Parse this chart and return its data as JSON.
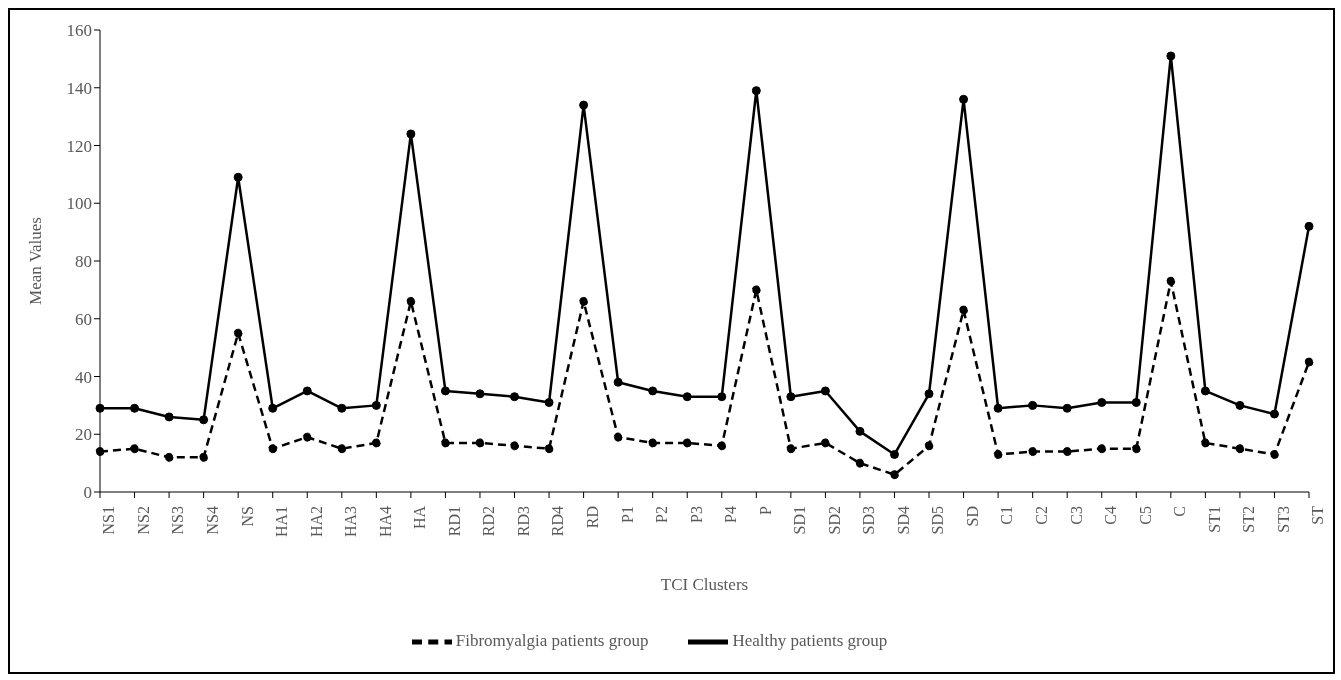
{
  "chart_data": {
    "type": "line",
    "xlabel": "TCI Clusters",
    "ylabel": "Mean Values",
    "categories": [
      "NS1",
      "NS2",
      "NS3",
      "NS4",
      "NS",
      "HA1",
      "HA2",
      "HA3",
      "HA4",
      "HA",
      "RD1",
      "RD2",
      "RD3",
      "RD4",
      "RD",
      "P1",
      "P2",
      "P3",
      "P4",
      "P",
      "SD1",
      "SD2",
      "SD3",
      "SD4",
      "SD5",
      "SD",
      "C1",
      "C2",
      "C3",
      "C4",
      "C5",
      "C",
      "ST1",
      "ST2",
      "ST3",
      "ST"
    ],
    "series": [
      {
        "name": "Fibromyalgia patients group",
        "color": "#000000",
        "line_style": "dashed",
        "values": [
          14,
          15,
          12,
          12,
          55,
          15,
          19,
          15,
          17,
          66,
          17,
          17,
          16,
          15,
          66,
          19,
          17,
          17,
          16,
          70,
          15,
          17,
          10,
          6,
          16,
          63,
          13,
          14,
          14,
          15,
          15,
          73,
          17,
          15,
          13,
          45
        ]
      },
      {
        "name": "Healthy patients group",
        "color": "#000000",
        "line_style": "solid",
        "values": [
          29,
          29,
          26,
          25,
          109,
          29,
          35,
          29,
          30,
          124,
          35,
          34,
          33,
          31,
          134,
          38,
          35,
          33,
          33,
          139,
          33,
          35,
          21,
          13,
          34,
          136,
          29,
          30,
          29,
          31,
          31,
          151,
          35,
          30,
          27,
          92
        ]
      }
    ],
    "ylim": [
      0,
      160
    ],
    "yticks": [
      0,
      20,
      40,
      60,
      80,
      100,
      120,
      140,
      160
    ],
    "grid": false,
    "legend": "bottom",
    "marker": "circle"
  }
}
